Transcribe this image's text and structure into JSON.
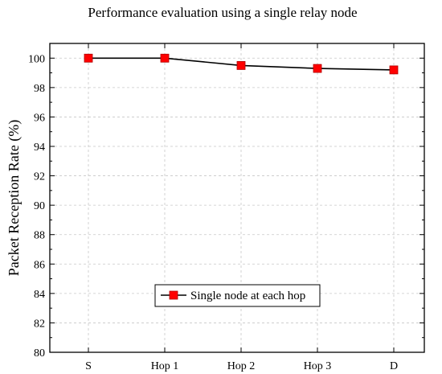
{
  "chart_data": {
    "type": "line",
    "title": "Performance evaluation using a single relay node",
    "xlabel": "",
    "ylabel": "Packet Reception Rate (%)",
    "categories": [
      "S",
      "Hop 1",
      "Hop 2",
      "Hop 3",
      "D"
    ],
    "series": [
      {
        "name": "Single node at each hop",
        "values": [
          100,
          100,
          99.5,
          99.3,
          99.2
        ]
      }
    ],
    "ylim": [
      80,
      101
    ],
    "yticks": [
      80,
      82,
      84,
      86,
      88,
      90,
      92,
      94,
      96,
      98,
      100
    ],
    "grid": true,
    "legend_position": "lower-center",
    "colors": {
      "line": "#000000",
      "marker": "#ff0000",
      "grid": "#c8c8c8"
    }
  }
}
